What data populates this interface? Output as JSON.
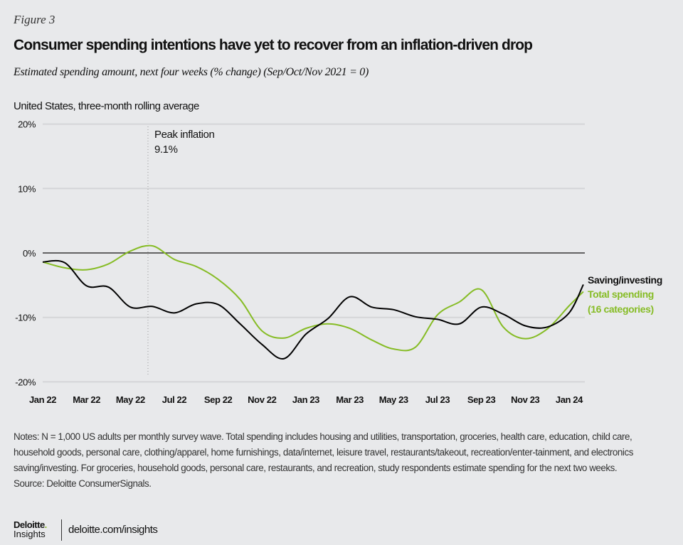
{
  "figure_label": "Figure 3",
  "footer": {
    "notes": "Notes: N = 1,000 US adults per monthly survey wave. Total spending includes housing and utilities, transportation, groceries, health care, education, child care, household goods, personal care, clothing/apparel, home furnishings, data/internet, leisure travel, restaurants/takeout, recreation/enter-tainment, and electronics saving/investing. For groceries, household goods, personal care, restaurants, and recreation, study respondents estimate spending for the next two weeks.",
    "source": "Source: Deloitte ConsumerSignals.",
    "logo_text": "Deloitte. Insights",
    "logo_line1": "Deloitte",
    "logo_line2": "Insights",
    "url": "deloitte.com/insights"
  },
  "chart_data": {
    "type": "line",
    "title": "Consumer spending intentions have yet to recover from an inflation-driven drop",
    "subtitle": "Estimated spending amount, next four weeks (% change) (Sep/Oct/Nov 2021 = 0)",
    "region_label": "United States, three-month rolling average",
    "x": [
      "Jan 22",
      "Feb 22",
      "Mar 22",
      "Apr 22",
      "May 22",
      "Jun 22",
      "Jul 22",
      "Aug 22",
      "Sep 22",
      "Oct 22",
      "Nov 22",
      "Dec 22",
      "Jan 23",
      "Feb 23",
      "Mar 23",
      "Apr 23",
      "May 23",
      "Jun 23",
      "Jul 23",
      "Aug 23",
      "Sep 23",
      "Oct 23",
      "Nov 23",
      "Dec 23",
      "Jan 24",
      "Feb 24"
    ],
    "x_tick_labels": [
      "Jan 22",
      "Mar 22",
      "May 22",
      "Jul 22",
      "Sep 22",
      "Nov 22",
      "Jan 23",
      "Mar 23",
      "May 23",
      "Jul 23",
      "Sep 23",
      "Nov 23",
      "Jan 24"
    ],
    "y_tick_labels": [
      "20%",
      "10%",
      "0%",
      "-10%",
      "-20%"
    ],
    "y_ticks": [
      20,
      10,
      0,
      -10,
      -20
    ],
    "ylim": [
      -20,
      20
    ],
    "grid": true,
    "legend_placement": "right end of lines",
    "series": [
      {
        "name": "Saving/investing",
        "color": "#000000",
        "values": [
          -1.4,
          -1.5,
          -5.1,
          -5.3,
          -8.4,
          -8.3,
          -9.3,
          -7.9,
          -8.0,
          -11.0,
          -14.2,
          -16.4,
          -12.6,
          -10.2,
          -6.8,
          -8.4,
          -8.8,
          -9.9,
          -10.3,
          -11.0,
          -8.4,
          -9.5,
          -11.3,
          -11.5,
          -9.3,
          -4.9
        ]
      },
      {
        "name": "Total spending (16 categories)",
        "name_line1": "Total spending",
        "name_line2": "(16 categories)",
        "color": "#86bc25",
        "values": [
          -1.4,
          -2.3,
          -2.6,
          -1.7,
          0.3,
          1.1,
          -1.0,
          -2.1,
          -4.1,
          -7.2,
          -12.1,
          -13.2,
          -11.7,
          -11.0,
          -11.7,
          -13.5,
          -14.9,
          -14.6,
          -9.6,
          -7.6,
          -5.7,
          -11.5,
          -13.3,
          -11.8,
          -8.2,
          -6.0
        ]
      }
    ],
    "annotation": {
      "x": "Jun 22",
      "line1": "Peak inflation",
      "line2": "9.1%"
    }
  }
}
